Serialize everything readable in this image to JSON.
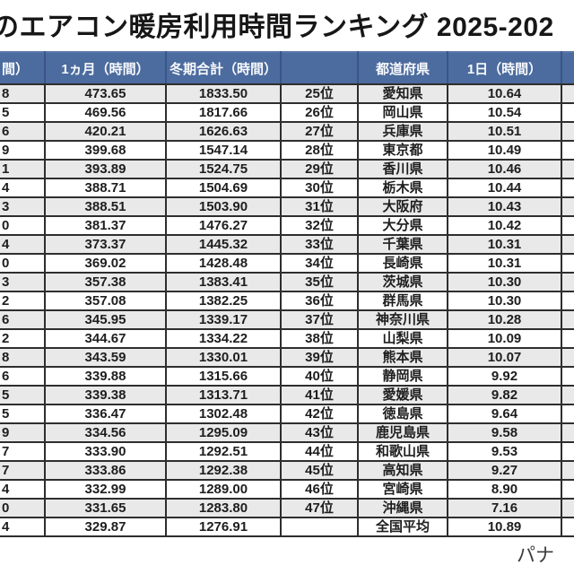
{
  "title": "のエアコン暖房利用時間ランキング 2025-202",
  "chart_data": {
    "type": "table",
    "title": "のエアコン暖房利用時間ランキング 2025-202",
    "headers": {
      "day_left_fragment": "間）",
      "month": "1ヵ月（時間）",
      "winter_total": "冬期合計（時間）",
      "rank": "",
      "prefecture": "都道府県",
      "day": "1日（時間）",
      "right_overflow": ""
    },
    "rows": [
      {
        "day_left_fragment": "8",
        "month_hours": "473.65",
        "winter_total_hours": "1833.50",
        "rank": "25位",
        "prefecture": "愛知県",
        "day_hours": "10.64"
      },
      {
        "day_left_fragment": "5",
        "month_hours": "469.56",
        "winter_total_hours": "1817.66",
        "rank": "26位",
        "prefecture": "岡山県",
        "day_hours": "10.54"
      },
      {
        "day_left_fragment": "6",
        "month_hours": "420.21",
        "winter_total_hours": "1626.63",
        "rank": "27位",
        "prefecture": "兵庫県",
        "day_hours": "10.51"
      },
      {
        "day_left_fragment": "9",
        "month_hours": "399.68",
        "winter_total_hours": "1547.14",
        "rank": "28位",
        "prefecture": "東京都",
        "day_hours": "10.49"
      },
      {
        "day_left_fragment": "1",
        "month_hours": "393.89",
        "winter_total_hours": "1524.75",
        "rank": "29位",
        "prefecture": "香川県",
        "day_hours": "10.46"
      },
      {
        "day_left_fragment": "4",
        "month_hours": "388.71",
        "winter_total_hours": "1504.69",
        "rank": "30位",
        "prefecture": "栃木県",
        "day_hours": "10.44"
      },
      {
        "day_left_fragment": "3",
        "month_hours": "388.51",
        "winter_total_hours": "1503.90",
        "rank": "31位",
        "prefecture": "大阪府",
        "day_hours": "10.43"
      },
      {
        "day_left_fragment": "0",
        "month_hours": "381.37",
        "winter_total_hours": "1476.27",
        "rank": "32位",
        "prefecture": "大分県",
        "day_hours": "10.42"
      },
      {
        "day_left_fragment": "4",
        "month_hours": "373.37",
        "winter_total_hours": "1445.32",
        "rank": "33位",
        "prefecture": "千葉県",
        "day_hours": "10.31"
      },
      {
        "day_left_fragment": "0",
        "month_hours": "369.02",
        "winter_total_hours": "1428.48",
        "rank": "34位",
        "prefecture": "長崎県",
        "day_hours": "10.31"
      },
      {
        "day_left_fragment": "3",
        "month_hours": "357.38",
        "winter_total_hours": "1383.41",
        "rank": "35位",
        "prefecture": "茨城県",
        "day_hours": "10.30"
      },
      {
        "day_left_fragment": "2",
        "month_hours": "357.08",
        "winter_total_hours": "1382.25",
        "rank": "36位",
        "prefecture": "群馬県",
        "day_hours": "10.30"
      },
      {
        "day_left_fragment": "6",
        "month_hours": "345.95",
        "winter_total_hours": "1339.17",
        "rank": "37位",
        "prefecture": "神奈川県",
        "day_hours": "10.28"
      },
      {
        "day_left_fragment": "2",
        "month_hours": "344.67",
        "winter_total_hours": "1334.22",
        "rank": "38位",
        "prefecture": "山梨県",
        "day_hours": "10.09"
      },
      {
        "day_left_fragment": "8",
        "month_hours": "343.59",
        "winter_total_hours": "1330.01",
        "rank": "39位",
        "prefecture": "熊本県",
        "day_hours": "10.07"
      },
      {
        "day_left_fragment": "6",
        "month_hours": "339.88",
        "winter_total_hours": "1315.66",
        "rank": "40位",
        "prefecture": "静岡県",
        "day_hours": "9.92"
      },
      {
        "day_left_fragment": "5",
        "month_hours": "339.38",
        "winter_total_hours": "1313.71",
        "rank": "41位",
        "prefecture": "愛媛県",
        "day_hours": "9.82"
      },
      {
        "day_left_fragment": "5",
        "month_hours": "336.47",
        "winter_total_hours": "1302.48",
        "rank": "42位",
        "prefecture": "徳島県",
        "day_hours": "9.64"
      },
      {
        "day_left_fragment": "9",
        "month_hours": "334.56",
        "winter_total_hours": "1295.09",
        "rank": "43位",
        "prefecture": "鹿児島県",
        "day_hours": "9.58"
      },
      {
        "day_left_fragment": "7",
        "month_hours": "333.90",
        "winter_total_hours": "1292.51",
        "rank": "44位",
        "prefecture": "和歌山県",
        "day_hours": "9.53"
      },
      {
        "day_left_fragment": "7",
        "month_hours": "333.86",
        "winter_total_hours": "1292.38",
        "rank": "45位",
        "prefecture": "高知県",
        "day_hours": "9.27"
      },
      {
        "day_left_fragment": "4",
        "month_hours": "332.99",
        "winter_total_hours": "1289.00",
        "rank": "46位",
        "prefecture": "宮崎県",
        "day_hours": "8.90"
      },
      {
        "day_left_fragment": "0",
        "month_hours": "331.65",
        "winter_total_hours": "1283.80",
        "rank": "47位",
        "prefecture": "沖縄県",
        "day_hours": "7.16"
      },
      {
        "day_left_fragment": "4",
        "month_hours": "329.87",
        "winter_total_hours": "1276.91",
        "rank": "",
        "prefecture": "全国平均",
        "day_hours": "10.89"
      }
    ],
    "footer_fragment": "パナ",
    "colors": {
      "header_bg": "#4c6b9e",
      "header_text": "#f7f9fc",
      "row_alt_bg": "#e9e9e9",
      "row_bg": "#ffffff",
      "border": "#2e2e2e",
      "title_text": "#171717"
    },
    "layout": {
      "grid": "on",
      "left_table_ranks": "1-24 (cropped off left edge)",
      "right_table_ranks": "25-47 + national average"
    }
  }
}
